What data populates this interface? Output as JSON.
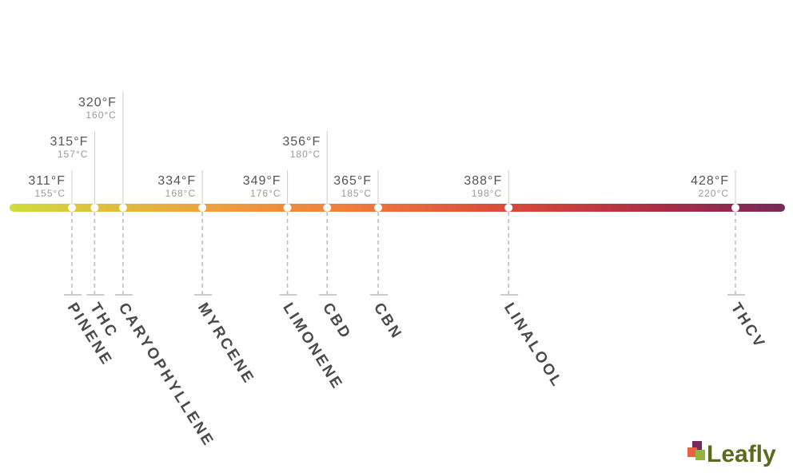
{
  "items": [
    {
      "fahrenheit": {
        "value": 311,
        "label": "311°F"
      },
      "celsius": "155°C",
      "name": "PINENE"
    },
    {
      "fahrenheit": {
        "value": 315,
        "label": "315°F"
      },
      "celsius": "157°C",
      "name": "THC"
    },
    {
      "fahrenheit": {
        "value": 320,
        "label": "320°F"
      },
      "celsius": "160°C",
      "name": "CARYOPHYLLENE"
    },
    {
      "fahrenheit": {
        "value": 334,
        "label": "334°F"
      },
      "celsius": "168°C",
      "name": "MYRCENE"
    },
    {
      "fahrenheit": {
        "value": 349,
        "label": "349°F"
      },
      "celsius": "176°C",
      "name": "LIMONENE"
    },
    {
      "fahrenheit": {
        "value": 356,
        "label": "356°F"
      },
      "celsius": "180°C",
      "name": "CBD"
    },
    {
      "fahrenheit": {
        "value": 365,
        "label": "365°F"
      },
      "celsius": "185°C",
      "name": "CBN"
    },
    {
      "fahrenheit": {
        "value": 388,
        "label": "388°F"
      },
      "celsius": "198°C",
      "name": "LINALOOL"
    },
    {
      "fahrenheit": {
        "value": 428,
        "label": "428°F"
      },
      "celsius": "220°C",
      "name": "THCV"
    }
  ],
  "logo": "Leafly"
}
